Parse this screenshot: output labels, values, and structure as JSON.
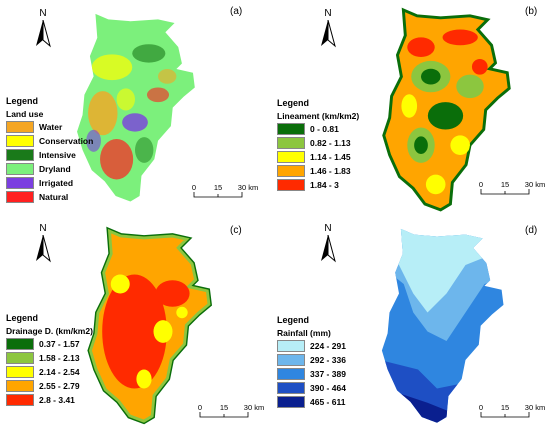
{
  "north_symbol": "N",
  "panels": [
    {
      "id": "a",
      "label": "(a)",
      "legend_title": "Legend",
      "legend_subtitle": "Land use",
      "classes": [
        {
          "label": "Water",
          "color": "#f5a623"
        },
        {
          "label": "Conservation",
          "color": "#ffff00"
        },
        {
          "label": "Intensive",
          "color": "#1a7a1a"
        },
        {
          "label": "Dryland",
          "color": "#7cf07c"
        },
        {
          "label": "Irrigated",
          "color": "#7b3fe0"
        },
        {
          "label": "Natural",
          "color": "#ff2020"
        }
      ],
      "scale": {
        "ticks": [
          "0",
          "15",
          "30 km"
        ]
      }
    },
    {
      "id": "b",
      "label": "(b)",
      "legend_title": "Legend",
      "legend_subtitle": "Lineament (km/km2)",
      "classes": [
        {
          "label": "0 - 0.81",
          "color": "#0a6e0a"
        },
        {
          "label": "0.82 - 1.13",
          "color": "#8cc63f"
        },
        {
          "label": "1.14 - 1.45",
          "color": "#ffff00"
        },
        {
          "label": "1.46 - 1.83",
          "color": "#ffa500"
        },
        {
          "label": "1.84 - 3",
          "color": "#ff2a00"
        }
      ],
      "scale": {
        "ticks": [
          "0",
          "15",
          "30 km"
        ]
      }
    },
    {
      "id": "c",
      "label": "(c)",
      "legend_title": "Legend",
      "legend_subtitle": "Drainage D. (km/km2)",
      "classes": [
        {
          "label": "0.37 - 1.57",
          "color": "#0a6e0a"
        },
        {
          "label": "1.58 - 2.13",
          "color": "#8cc63f"
        },
        {
          "label": "2.14 - 2.54",
          "color": "#ffff00"
        },
        {
          "label": "2.55 - 2.79",
          "color": "#ffa500"
        },
        {
          "label": "2.8 - 3.41",
          "color": "#ff2a00"
        }
      ],
      "scale": {
        "ticks": [
          "0",
          "15",
          "30 km"
        ]
      }
    },
    {
      "id": "d",
      "label": "(d)",
      "legend_title": "Legend",
      "legend_subtitle": "Rainfall (mm)",
      "classes": [
        {
          "label": "224 - 291",
          "color": "#b7eef7"
        },
        {
          "label": "292 - 336",
          "color": "#6db6ec"
        },
        {
          "label": "337 - 389",
          "color": "#2f86e0"
        },
        {
          "label": "390 - 464",
          "color": "#1e4fc4"
        },
        {
          "label": "465 - 611",
          "color": "#0a1f8f"
        }
      ],
      "scale": {
        "ticks": [
          "0",
          "15",
          "30 km"
        ]
      }
    }
  ]
}
